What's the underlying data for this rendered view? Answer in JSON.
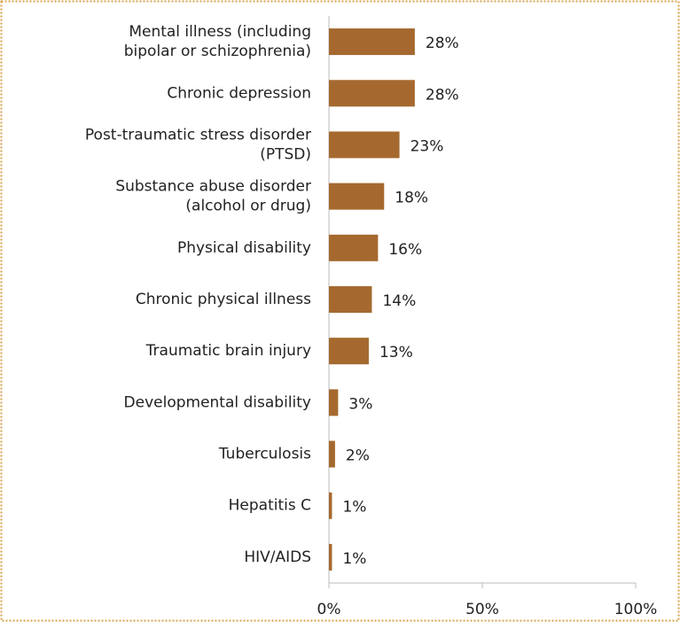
{
  "chart_data": {
    "type": "bar",
    "orientation": "horizontal",
    "categories": [
      [
        "Mental illness (including",
        "bipolar or schizophrenia)"
      ],
      [
        "Chronic depression"
      ],
      [
        "Post-traumatic stress disorder",
        "(PTSD)"
      ],
      [
        "Substance abuse disorder",
        "(alcohol or drug)"
      ],
      [
        "Physical disability"
      ],
      [
        "Chronic physical illness"
      ],
      [
        "Traumatic brain injury"
      ],
      [
        "Developmental disability"
      ],
      [
        "Tuberculosis"
      ],
      [
        "Hepatitis C"
      ],
      [
        "HIV/AIDS"
      ]
    ],
    "values": [
      28,
      28,
      23,
      18,
      16,
      14,
      13,
      3,
      2,
      1,
      1
    ],
    "value_labels": [
      "28%",
      "28%",
      "23%",
      "18%",
      "16%",
      "14%",
      "13%",
      "3%",
      "2%",
      "1%",
      "1%"
    ],
    "color": "#a5692f",
    "xlim": [
      0,
      100
    ],
    "xticks": [
      {
        "value": 0,
        "label": "0%"
      },
      {
        "value": 50,
        "label": "50%"
      },
      {
        "value": 100,
        "label": "100%"
      }
    ]
  }
}
